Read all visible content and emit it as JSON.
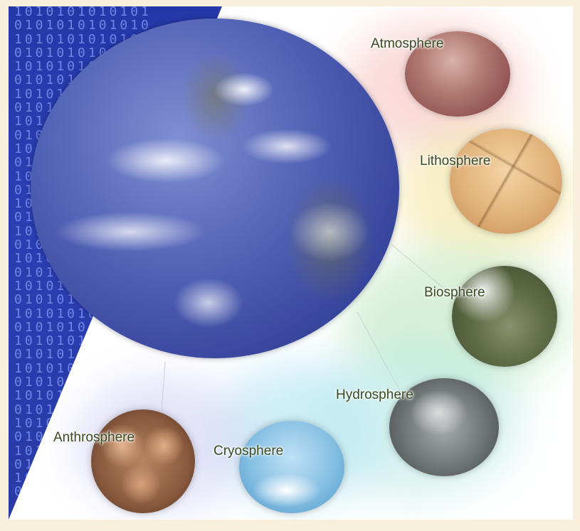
{
  "binary_pattern": "1010101010101",
  "spheres": {
    "atmosphere": {
      "label": "Atmosphere",
      "color": "#a9665f"
    },
    "lithosphere": {
      "label": "Lithosphere",
      "color": "#d8a46a"
    },
    "biosphere": {
      "label": "Biosphere",
      "color": "#5f6e48"
    },
    "hydrosphere": {
      "label": "Hydrosphere",
      "color": "#7b8080"
    },
    "cryosphere": {
      "label": "Cryosphere",
      "color": "#7db8dd"
    },
    "anthrosphere": {
      "label": "Anthrosphere",
      "color": "#a26e4c"
    }
  },
  "colors": {
    "page_background": "#f9efdd",
    "binary_strip": "#2a3aa6",
    "earth_ocean": "#3d4fa0"
  }
}
